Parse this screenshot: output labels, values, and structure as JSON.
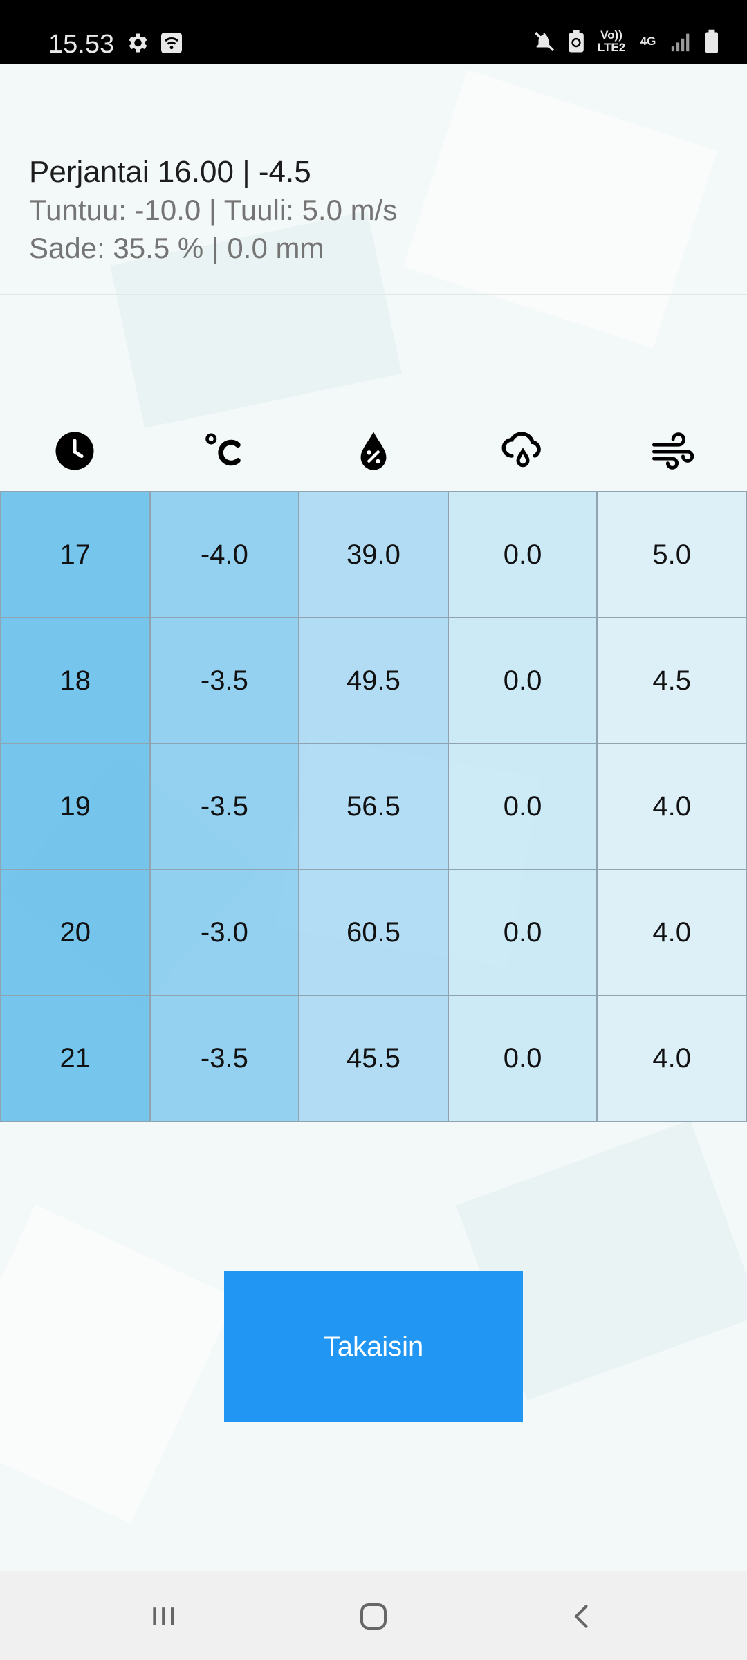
{
  "status_bar": {
    "time": "15.53",
    "volte_label": "Vo)) LTE2",
    "network_label": "4G"
  },
  "info": {
    "line1": "Perjantai 16.00 | -4.5",
    "line2": "Tuntuu: -10.0 | Tuuli: 5.0 m/s",
    "line3": "Sade: 35.5 % | 0.0 mm"
  },
  "columns": [
    {
      "icon": "clock-icon"
    },
    {
      "icon": "celsius-icon"
    },
    {
      "icon": "humidity-drop-icon"
    },
    {
      "icon": "rain-cloud-icon"
    },
    {
      "icon": "wind-icon"
    }
  ],
  "rows": [
    [
      "17",
      "-4.0",
      "39.0",
      "0.0",
      "5.0"
    ],
    [
      "18",
      "-3.5",
      "49.5",
      "0.0",
      "4.5"
    ],
    [
      "19",
      "-3.5",
      "56.5",
      "0.0",
      "4.0"
    ],
    [
      "20",
      "-3.0",
      "60.5",
      "0.0",
      "4.0"
    ],
    [
      "21",
      "-3.5",
      "45.5",
      "0.0",
      "4.0"
    ]
  ],
  "back_button": {
    "label": "Takaisin",
    "color": "#2196f3"
  },
  "nav": {
    "recents": "recents-icon",
    "home": "home-icon",
    "back": "back-icon"
  }
}
